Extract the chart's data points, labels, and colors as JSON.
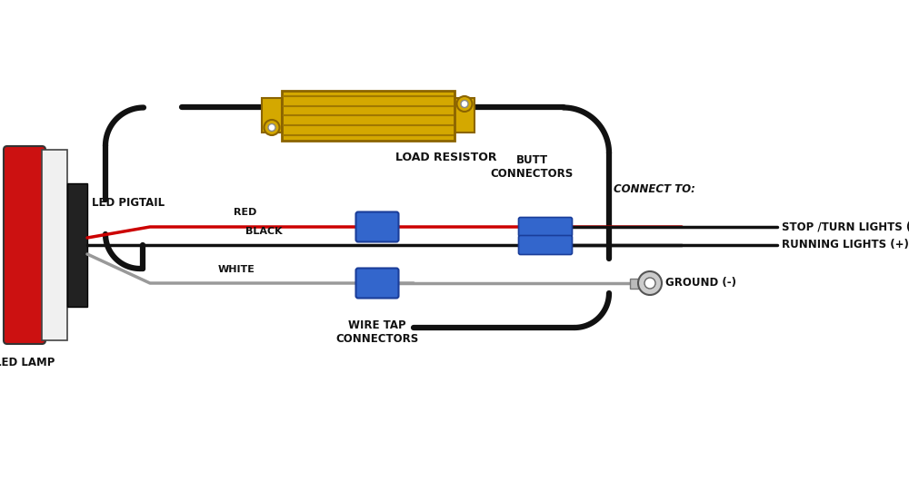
{
  "bg_color": "#ffffff",
  "wire_black": "#111111",
  "wire_red": "#cc0000",
  "wire_gray": "#999999",
  "connector_blue": "#3366cc",
  "connector_blue_dark": "#1a3d99",
  "resistor_gold": "#d4a800",
  "resistor_dark": "#8B6400",
  "resistor_stripe_dark": "#a07800",
  "lamp_red": "#cc1111",
  "lamp_white": "#f0f0f0",
  "lamp_black": "#222222",
  "text_color": "#111111",
  "labels": {
    "load_resistor": "LOAD RESISTOR",
    "led_pigtail": "LED PIGTAIL",
    "led_lamp": "LED LAMP",
    "red": "RED",
    "black": "BLACK",
    "white": "WHITE",
    "butt_connectors": "BUTT\nCONNECTORS",
    "wire_tap_connectors": "WIRE TAP\nCONNECTORS",
    "connect_to": "CONNECT TO:",
    "stop_turn": "STOP /TURN LIGHTS (+)",
    "running_lights": "RUNNING LIGHTS (+)",
    "ground": "GROUND (-)"
  }
}
